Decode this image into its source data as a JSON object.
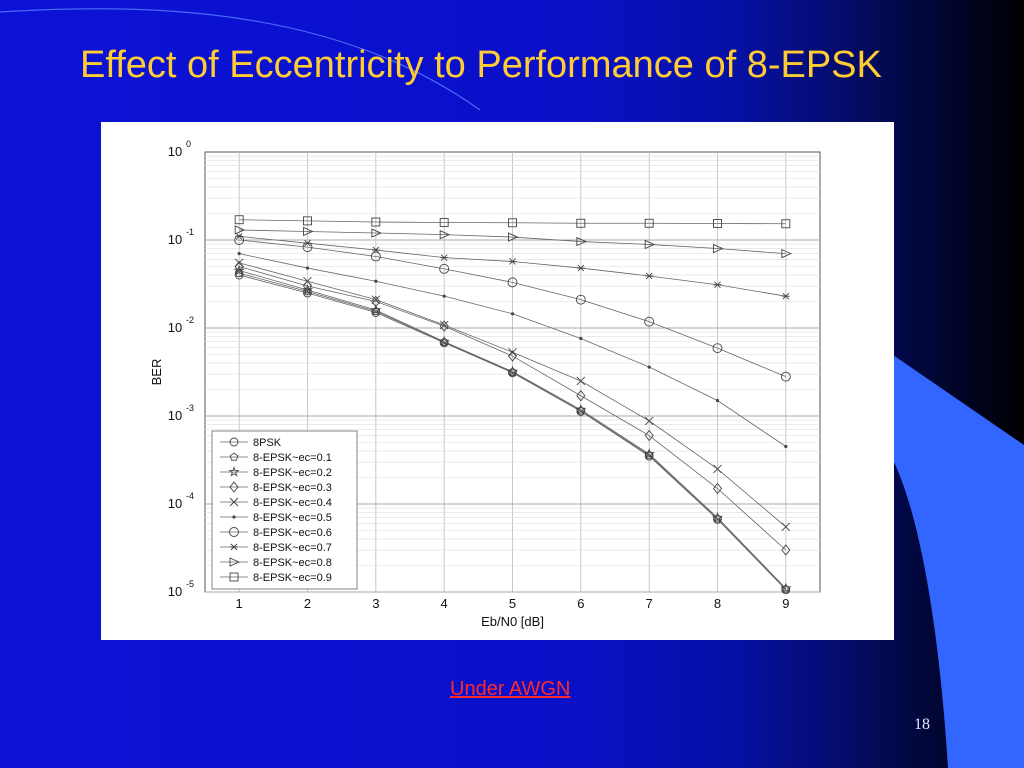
{
  "slide": {
    "title": "Effect of Eccentricity to Performance of 8-EPSK",
    "caption": "Under AWGN",
    "slide_number": "18"
  },
  "colors": {
    "title": "#ffcc33",
    "caption": "#ff2a2a",
    "background": "#0b12d6",
    "accent_shape": "#3366ff"
  },
  "chart_data": {
    "type": "line",
    "title": "",
    "xlabel": "Eb/N0 [dB]",
    "ylabel": "BER",
    "y_scale": "log",
    "xlim": [
      0.5,
      9.5
    ],
    "ylim": [
      1e-05,
      1
    ],
    "x_ticks": [
      1,
      2,
      3,
      4,
      5,
      6,
      7,
      8,
      9
    ],
    "y_ticks": [
      {
        "base": "10",
        "exp": "0",
        "value": 1
      },
      {
        "base": "10",
        "exp": "-1",
        "value": 0.1
      },
      {
        "base": "10",
        "exp": "-2",
        "value": 0.01
      },
      {
        "base": "10",
        "exp": "-3",
        "value": 0.001
      },
      {
        "base": "10",
        "exp": "-4",
        "value": 0.0001
      },
      {
        "base": "10",
        "exp": "-5",
        "value": 1e-05
      }
    ],
    "grid": true,
    "legend_position": "bottom-left",
    "x": [
      1,
      2,
      3,
      4,
      5,
      6,
      7,
      8,
      9
    ],
    "series": [
      {
        "name": "8PSK",
        "marker": "circle",
        "values": [
          0.04,
          0.025,
          0.015,
          0.0068,
          0.0031,
          0.00113,
          0.00035,
          6.7e-05,
          1.06e-05
        ]
      },
      {
        "name": "8-EPSK~ec=0.1",
        "marker": "pentagon",
        "values": [
          0.042,
          0.026,
          0.0155,
          0.0069,
          0.00315,
          0.00115,
          0.00036,
          6.8e-05,
          1.08e-05
        ]
      },
      {
        "name": "8-EPSK~ec=0.2",
        "marker": "star",
        "values": [
          0.045,
          0.027,
          0.016,
          0.007,
          0.0032,
          0.00118,
          0.00037,
          7e-05,
          1.1e-05
        ]
      },
      {
        "name": "8-EPSK~ec=0.3",
        "marker": "diamond",
        "values": [
          0.05,
          0.03,
          0.02,
          0.0105,
          0.0048,
          0.0017,
          0.0006,
          0.00015,
          3e-05
        ]
      },
      {
        "name": "8-EPSK~ec=0.4",
        "marker": "x",
        "values": [
          0.055,
          0.034,
          0.021,
          0.0108,
          0.0053,
          0.0025,
          0.00088,
          0.00025,
          5.5e-05
        ]
      },
      {
        "name": "8-EPSK~ec=0.5",
        "marker": "dot",
        "values": [
          0.07,
          0.048,
          0.034,
          0.023,
          0.0145,
          0.0076,
          0.0036,
          0.0015,
          0.00045
        ]
      },
      {
        "name": "8-EPSK~ec=0.6",
        "marker": "octagon",
        "values": [
          0.1,
          0.083,
          0.065,
          0.047,
          0.033,
          0.021,
          0.0118,
          0.0059,
          0.0028
        ]
      },
      {
        "name": "8-EPSK~ec=0.7",
        "marker": "asterisk",
        "values": [
          0.11,
          0.092,
          0.077,
          0.063,
          0.057,
          0.048,
          0.039,
          0.031,
          0.023
        ]
      },
      {
        "name": "8-EPSK~ec=0.8",
        "marker": "triangle-right",
        "values": [
          0.13,
          0.125,
          0.12,
          0.115,
          0.108,
          0.096,
          0.089,
          0.08,
          0.07
        ]
      },
      {
        "name": "8-EPSK~ec=0.9",
        "marker": "square",
        "values": [
          0.17,
          0.165,
          0.16,
          0.158,
          0.157,
          0.155,
          0.155,
          0.154,
          0.153
        ]
      }
    ]
  }
}
